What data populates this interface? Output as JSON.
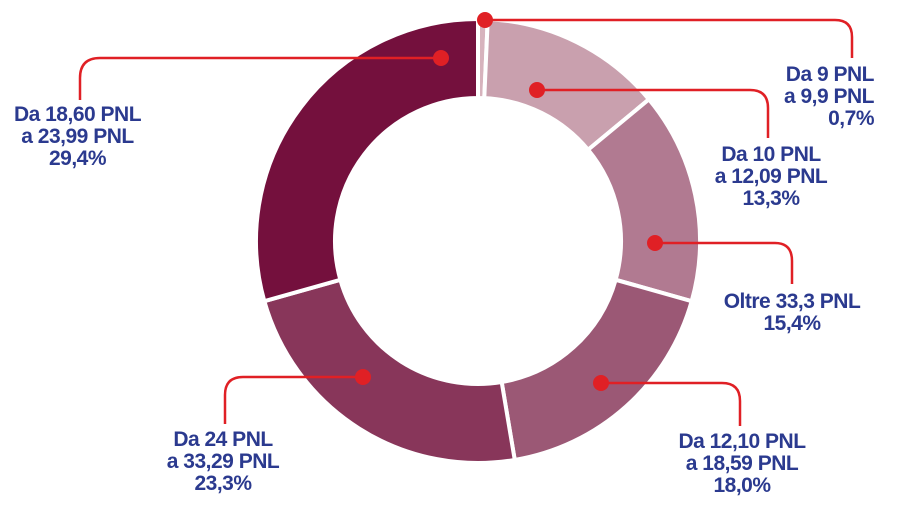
{
  "chart_data": {
    "type": "pie",
    "donut": true,
    "slices": [
      {
        "line1": "Da 9 PNL",
        "line2": "a 9,9 PNL",
        "pct_label": "0,7%",
        "value": 0.7,
        "color": "#d7b3bd"
      },
      {
        "line1": "Da 10 PNL",
        "line2": "a 12,09 PNL",
        "pct_label": "13,3%",
        "value": 13.3,
        "color": "#c9a0ae"
      },
      {
        "line1": "Oltre 33,3 PNL",
        "line2": "",
        "pct_label": "15,4%",
        "value": 15.4,
        "color": "#b17a91"
      },
      {
        "line1": "Da 12,10 PNL",
        "line2": "a 18,59 PNL",
        "pct_label": "18,0%",
        "value": 18.0,
        "color": "#9b5875"
      },
      {
        "line1": "Da 24 PNL",
        "line2": "a 33,29 PNL",
        "pct_label": "23,3%",
        "value": 23.3,
        "color": "#88365a"
      },
      {
        "line1": "Da 18,60 PNL",
        "line2": "a 23,99 PNL",
        "pct_label": "29,4%",
        "value": 29.4,
        "color": "#74103d"
      }
    ],
    "leader_color": "#e02025"
  }
}
